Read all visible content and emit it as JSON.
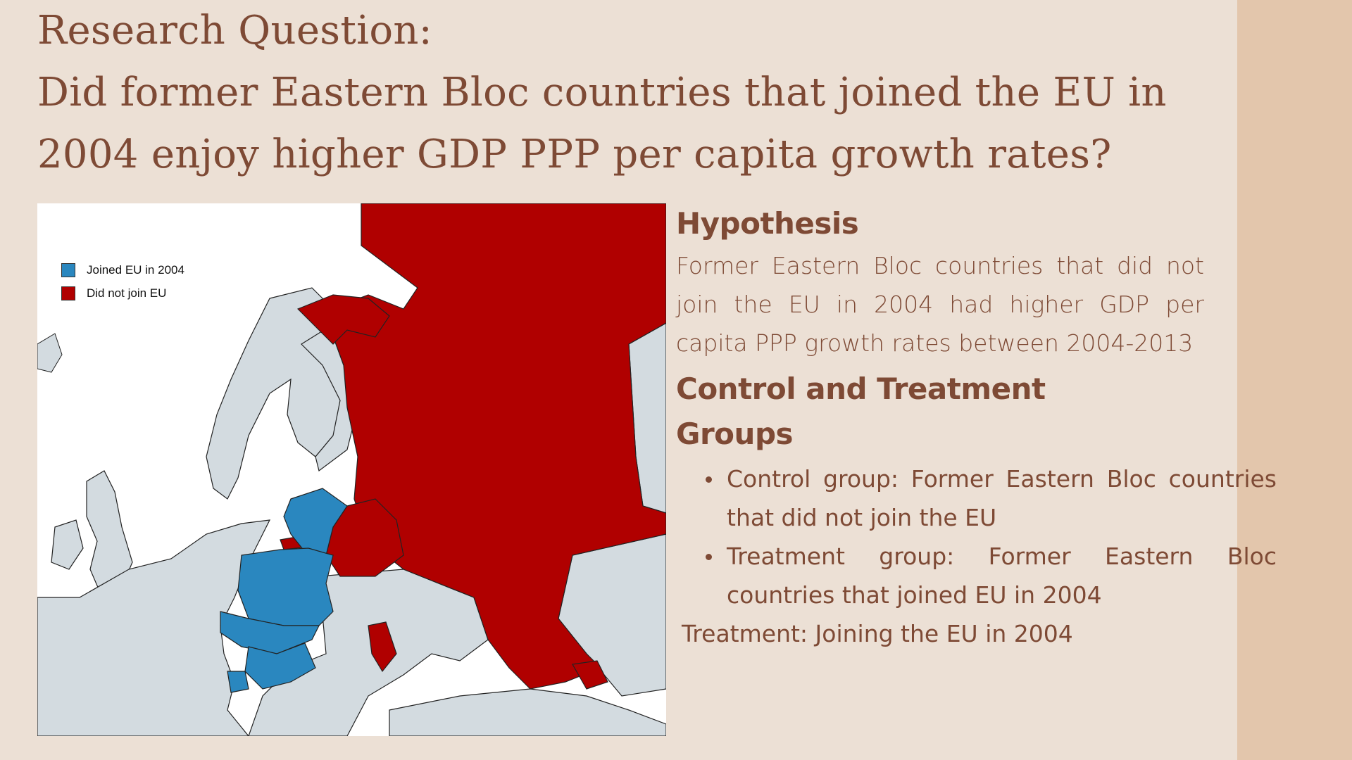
{
  "title": {
    "line1": "Research Question:",
    "line2": "Did former Eastern Bloc countries that joined the EU in",
    "line3": "2004 enjoy higher GDP PPP per capita growth rates?"
  },
  "map": {
    "legend": [
      {
        "label": "Joined EU in 2004",
        "color": "#2a87bf"
      },
      {
        "label": "Did not join EU",
        "color": "#b00000"
      }
    ],
    "colors": {
      "other_land": "#d3dbe0",
      "water": "#ffffff",
      "border": "#222222"
    }
  },
  "hypothesis": {
    "heading": "Hypothesis",
    "text": "Former Eastern Bloc countries that did not join the EU in 2004 had higher GDP  per capita PPP growth rates between 2004-2013"
  },
  "groups": {
    "heading_line1": "Control and Treatment",
    "heading_line2": "Groups",
    "items": [
      "Control group: Former Eastern Bloc countries that did not join the EU",
      "Treatment group: Former Eastern Bloc countries that joined EU in 2004"
    ],
    "treatment": "Treatment: Joining the EU in 2004"
  },
  "colors": {
    "text": "#7e4a35",
    "background": "#ece0d5",
    "side_band": "#e3c6ac"
  }
}
